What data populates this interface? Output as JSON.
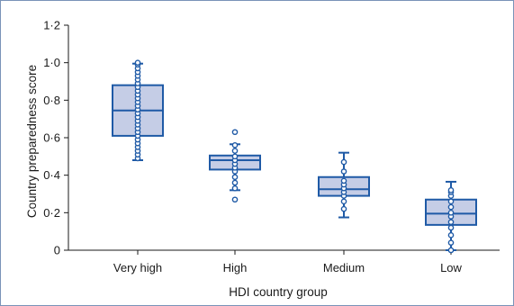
{
  "chart_data": {
    "type": "boxplot",
    "xlabel": "HDI country group",
    "ylabel": "Country preparedness score",
    "ylim": [
      0,
      1.2
    ],
    "yticks": [
      0,
      0.2,
      0.4,
      0.6,
      0.8,
      1.0,
      1.2
    ],
    "ytick_labels": [
      "0",
      "0·2",
      "0·4",
      "0·6",
      "0·8",
      "1·0",
      "1·2"
    ],
    "grid": false,
    "colors": {
      "box_fill": "#c5cde6",
      "stroke": "#1f5aa6",
      "frame": "#7a93b8"
    },
    "categories": [
      "Very high",
      "High",
      "Medium",
      "Low"
    ],
    "boxes": [
      {
        "label": "Very high",
        "whisker_low": 0.48,
        "q1": 0.61,
        "median": 0.745,
        "q3": 0.88,
        "whisker_high": 0.995,
        "points": [
          0.49,
          0.51,
          0.53,
          0.55,
          0.57,
          0.59,
          0.61,
          0.63,
          0.65,
          0.67,
          0.69,
          0.71,
          0.73,
          0.75,
          0.77,
          0.79,
          0.81,
          0.83,
          0.85,
          0.87,
          0.89,
          0.91,
          0.93,
          0.95,
          0.97,
          0.99,
          1.0
        ]
      },
      {
        "label": "High",
        "whisker_low": 0.32,
        "q1": 0.43,
        "median": 0.48,
        "q3": 0.505,
        "whisker_high": 0.565,
        "points": [
          0.27,
          0.33,
          0.36,
          0.39,
          0.42,
          0.44,
          0.46,
          0.48,
          0.5,
          0.53,
          0.56,
          0.63
        ]
      },
      {
        "label": "Medium",
        "whisker_low": 0.175,
        "q1": 0.29,
        "median": 0.325,
        "q3": 0.39,
        "whisker_high": 0.52,
        "points": [
          0.22,
          0.26,
          0.29,
          0.31,
          0.33,
          0.35,
          0.37,
          0.42,
          0.47
        ]
      },
      {
        "label": "Low",
        "whisker_low": 0.0,
        "q1": 0.135,
        "median": 0.195,
        "q3": 0.27,
        "whisker_high": 0.365,
        "points": [
          0.0,
          0.04,
          0.08,
          0.12,
          0.15,
          0.18,
          0.2,
          0.23,
          0.26,
          0.29,
          0.31,
          0.32
        ]
      }
    ]
  }
}
